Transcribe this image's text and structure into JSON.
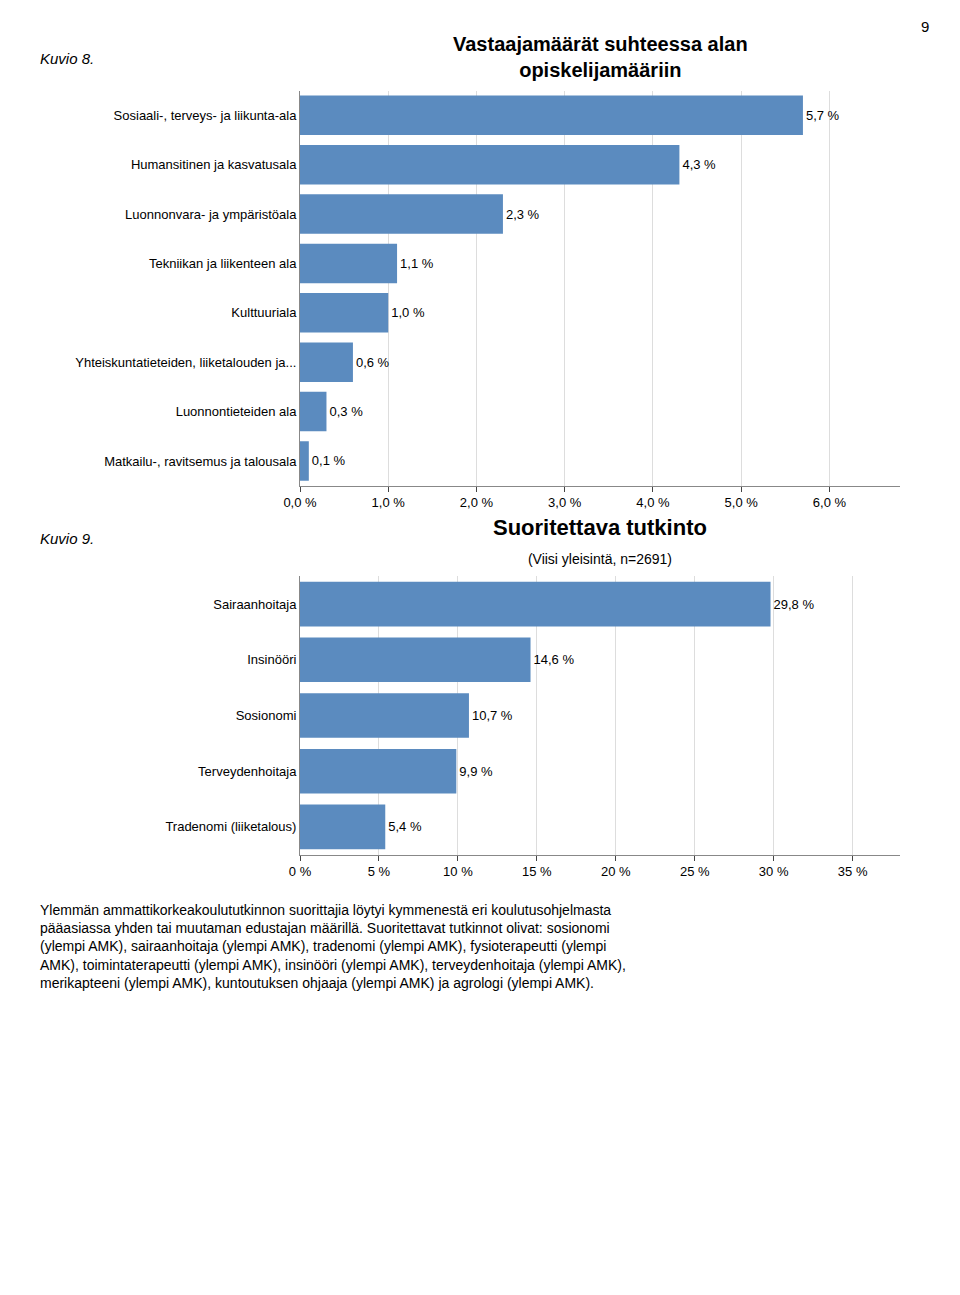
{
  "page_number": "9",
  "footnote": [
    "Ylemmän ammattikorkeakoulututkinnon suorittajia löytyi kymmenestä eri koulutusohjelmasta",
    "pääasiassa yhden tai muutaman edustajan määrillä. Suoritettavat tutkinnot olivat: sosionomi",
    "(ylempi AMK), sairaanhoitaja (ylempi AMK), tradenomi (ylempi AMK), fysioterapeutti (ylempi",
    "AMK), toimintaterapeutti (ylempi AMK), insinööri (ylempi AMK), terveydenhoitaja (ylempi AMK),",
    "merikapteeni (ylempi AMK), kuntoutuksen ohjaaja (ylempi AMK) ja agrologi (ylempi AMK)."
  ],
  "chart_data": [
    {
      "type": "bar",
      "orientation": "horizontal",
      "annotations": [
        "Kuvio 8."
      ],
      "title": "Vastaajamäärät suhteessa alan\nopiskelijamääriin",
      "categories": [
        "Sosiaali-, terveys- ja liikunta-ala",
        "Humansitinen ja kasvatusala",
        "Luonnonvara- ja ympäristöala",
        "Tekniikan ja liikenteen ala",
        "Kulttuuriala",
        "Yhteiskuntatieteiden, liiketalouden ja...",
        "Luonnontieteiden ala",
        "Matkailu-, ravitsemus ja talousala"
      ],
      "values": [
        5.7,
        4.3,
        2.3,
        1.1,
        1.0,
        0.6,
        0.3,
        0.1
      ],
      "value_labels": [
        "5,7 %",
        "4,3 %",
        "2,3 %",
        "1,1 %",
        "1,0 %",
        "0,6 %",
        "0,3 %",
        "0,1 %"
      ],
      "data_labels": true,
      "color": "#5b8bbf",
      "xlim": [
        0,
        6.8
      ],
      "xticks": [
        {
          "value": 0.0,
          "label": "0,0 %"
        },
        {
          "value": 1.0,
          "label": "1,0 %"
        },
        {
          "value": 2.0,
          "label": "2,0 %"
        },
        {
          "value": 3.0,
          "label": "3,0 %"
        },
        {
          "value": 4.0,
          "label": "4,0 %"
        },
        {
          "value": 5.0,
          "label": "5,0 %"
        },
        {
          "value": 6.0,
          "label": "6,0 %"
        }
      ],
      "grid": true
    },
    {
      "type": "bar",
      "orientation": "horizontal",
      "annotations": [
        "Kuvio 9."
      ],
      "title": "Suoritettava tutkinto",
      "subtitle": "(Viisi yleisintä, n=2691)",
      "categories": [
        "Sairaanhoitaja",
        "Insinööri",
        "Sosionomi",
        "Terveydenhoitaja",
        "Tradenomi (liiketalous)"
      ],
      "values": [
        29.8,
        14.6,
        10.7,
        9.9,
        5.4
      ],
      "value_labels": [
        "29,8 %",
        "14,6 %",
        "10,7 %",
        "9,9 %",
        "5,4 %"
      ],
      "data_labels": true,
      "color": "#5b8bbf",
      "xlim": [
        0,
        38
      ],
      "xticks": [
        {
          "value": 0,
          "label": "0 %"
        },
        {
          "value": 5,
          "label": "5 %"
        },
        {
          "value": 10,
          "label": "10 %"
        },
        {
          "value": 15,
          "label": "15 %"
        },
        {
          "value": 20,
          "label": "20 %"
        },
        {
          "value": 25,
          "label": "25 %"
        },
        {
          "value": 30,
          "label": "30 %"
        },
        {
          "value": 35,
          "label": "35 %"
        }
      ],
      "grid": true
    }
  ]
}
